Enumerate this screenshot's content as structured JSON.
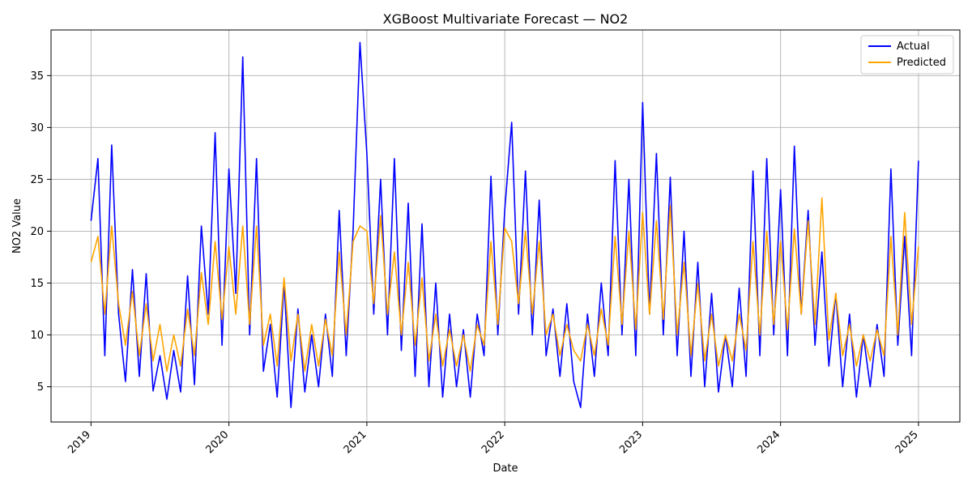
{
  "chart_data": {
    "type": "line",
    "title": "XGBoost Multivariate Forecast — NO2",
    "xlabel": "Date",
    "ylabel": "NO2 Value",
    "xlim": [
      2018.71,
      2025.3
    ],
    "ylim": [
      1.6,
      39.4
    ],
    "x_ticks": [
      2019,
      2020,
      2021,
      2022,
      2023,
      2024,
      2025
    ],
    "y_ticks": [
      5,
      10,
      15,
      20,
      25,
      30,
      35
    ],
    "grid": true,
    "legend_position": "top-right",
    "series": [
      {
        "name": "Actual",
        "color": "#0000ff",
        "x": [
          2019.0,
          2019.05,
          2019.1,
          2019.15,
          2019.2,
          2019.25,
          2019.3,
          2019.35,
          2019.4,
          2019.45,
          2019.5,
          2019.55,
          2019.6,
          2019.65,
          2019.7,
          2019.75,
          2019.8,
          2019.85,
          2019.9,
          2019.95,
          2020.0,
          2020.05,
          2020.1,
          2020.15,
          2020.2,
          2020.25,
          2020.3,
          2020.35,
          2020.4,
          2020.45,
          2020.5,
          2020.55,
          2020.6,
          2020.65,
          2020.7,
          2020.75,
          2020.8,
          2020.85,
          2020.9,
          2020.95,
          2021.0,
          2021.05,
          2021.1,
          2021.15,
          2021.2,
          2021.25,
          2021.3,
          2021.35,
          2021.4,
          2021.45,
          2021.5,
          2021.55,
          2021.6,
          2021.65,
          2021.7,
          2021.75,
          2021.8,
          2021.85,
          2021.9,
          2021.95,
          2022.0,
          2022.05,
          2022.1,
          2022.15,
          2022.2,
          2022.25,
          2022.3,
          2022.35,
          2022.4,
          2022.45,
          2022.5,
          2022.55,
          2022.6,
          2022.65,
          2022.7,
          2022.75,
          2022.8,
          2022.85,
          2022.9,
          2022.95,
          2023.0,
          2023.05,
          2023.1,
          2023.15,
          2023.2,
          2023.25,
          2023.3,
          2023.35,
          2023.4,
          2023.45,
          2023.5,
          2023.55,
          2023.6,
          2023.65,
          2023.7,
          2023.75,
          2023.8,
          2023.85,
          2023.9,
          2023.95,
          2024.0,
          2024.05,
          2024.1,
          2024.15,
          2024.2,
          2024.25,
          2024.3,
          2024.35,
          2024.4,
          2024.45,
          2024.5,
          2024.55,
          2024.6,
          2024.65,
          2024.7,
          2024.75,
          2024.8,
          2024.85,
          2024.9,
          2024.95,
          2025.0
        ],
        "values": [
          21.0,
          27.0,
          8.0,
          28.3,
          12.0,
          5.5,
          16.3,
          6.0,
          15.9,
          4.6,
          8.0,
          3.8,
          8.5,
          4.5,
          15.7,
          5.2,
          20.5,
          12.0,
          29.5,
          9.0,
          26.0,
          14.0,
          36.8,
          10.0,
          27.0,
          6.5,
          11.0,
          4.0,
          15.0,
          3.0,
          12.5,
          4.5,
          10.0,
          5.0,
          12.0,
          6.0,
          22.0,
          8.0,
          20.0,
          38.2,
          27.5,
          12.0,
          25.0,
          10.0,
          27.0,
          8.5,
          22.7,
          6.0,
          20.7,
          5.0,
          15.0,
          4.0,
          12.0,
          5.0,
          10.5,
          4.0,
          12.0,
          8.0,
          25.3,
          10.0,
          22.0,
          30.5,
          12.0,
          25.8,
          10.0,
          23.0,
          8.0,
          12.5,
          6.0,
          13.0,
          5.5,
          3.0,
          12.0,
          6.0,
          15.0,
          8.0,
          26.8,
          10.0,
          25.0,
          8.0,
          32.4,
          12.0,
          27.5,
          10.0,
          25.2,
          8.0,
          20.0,
          6.0,
          17.0,
          5.0,
          14.0,
          4.5,
          10.0,
          5.0,
          14.5,
          6.0,
          25.8,
          8.0,
          27.0,
          10.0,
          24.0,
          8.0,
          28.2,
          12.0,
          22.0,
          9.0,
          18.0,
          7.0,
          14.0,
          5.0,
          12.0,
          4.0,
          10.0,
          5.0,
          11.0,
          6.0,
          26.0,
          9.0,
          19.5,
          8.0,
          26.8
        ]
      },
      {
        "name": "Predicted",
        "color": "#ffa500",
        "x": [
          2019.0,
          2019.05,
          2019.1,
          2019.15,
          2019.2,
          2019.25,
          2019.3,
          2019.35,
          2019.4,
          2019.45,
          2019.5,
          2019.55,
          2019.6,
          2019.65,
          2019.7,
          2019.75,
          2019.8,
          2019.85,
          2019.9,
          2019.95,
          2020.0,
          2020.05,
          2020.1,
          2020.15,
          2020.2,
          2020.25,
          2020.3,
          2020.35,
          2020.4,
          2020.45,
          2020.5,
          2020.55,
          2020.6,
          2020.65,
          2020.7,
          2020.75,
          2020.8,
          2020.85,
          2020.9,
          2020.95,
          2021.0,
          2021.05,
          2021.1,
          2021.15,
          2021.2,
          2021.25,
          2021.3,
          2021.35,
          2021.4,
          2021.45,
          2021.5,
          2021.55,
          2021.6,
          2021.65,
          2021.7,
          2021.75,
          2021.8,
          2021.85,
          2021.9,
          2021.95,
          2022.0,
          2022.05,
          2022.1,
          2022.15,
          2022.2,
          2022.25,
          2022.3,
          2022.35,
          2022.4,
          2022.45,
          2022.5,
          2022.55,
          2022.6,
          2022.65,
          2022.7,
          2022.75,
          2022.8,
          2022.85,
          2022.9,
          2022.95,
          2023.0,
          2023.05,
          2023.1,
          2023.15,
          2023.2,
          2023.25,
          2023.3,
          2023.35,
          2023.4,
          2023.45,
          2023.5,
          2023.55,
          2023.6,
          2023.65,
          2023.7,
          2023.75,
          2023.8,
          2023.85,
          2023.9,
          2023.95,
          2024.0,
          2024.05,
          2024.1,
          2024.15,
          2024.2,
          2024.25,
          2024.3,
          2024.35,
          2024.4,
          2024.45,
          2024.5,
          2024.55,
          2024.6,
          2024.65,
          2024.7,
          2024.75,
          2024.8,
          2024.85,
          2024.9,
          2024.95,
          2025.0
        ],
        "values": [
          17.0,
          19.5,
          12.0,
          20.5,
          13.0,
          9.0,
          14.2,
          8.0,
          13.0,
          7.5,
          11.0,
          6.5,
          10.0,
          7.0,
          12.5,
          8.0,
          16.0,
          11.0,
          19.0,
          11.5,
          18.5,
          12.0,
          20.5,
          11.0,
          20.5,
          9.0,
          12.0,
          7.0,
          15.5,
          7.5,
          12.0,
          6.5,
          11.0,
          7.0,
          11.5,
          8.0,
          18.0,
          10.0,
          19.0,
          20.5,
          20.0,
          13.0,
          21.5,
          12.0,
          18.0,
          10.0,
          17.0,
          9.0,
          15.5,
          7.5,
          12.0,
          7.0,
          10.5,
          7.0,
          10.0,
          6.5,
          11.0,
          9.0,
          19.0,
          11.0,
          20.3,
          19.0,
          13.0,
          20.0,
          12.0,
          19.0,
          10.0,
          12.0,
          8.0,
          11.0,
          8.5,
          7.5,
          11.0,
          8.0,
          12.5,
          9.0,
          19.5,
          11.0,
          20.0,
          10.5,
          21.8,
          12.0,
          21.0,
          11.5,
          22.5,
          10.0,
          17.0,
          8.0,
          15.0,
          7.5,
          12.0,
          7.0,
          10.0,
          7.5,
          12.0,
          8.5,
          19.0,
          10.0,
          20.0,
          11.0,
          19.0,
          10.5,
          20.2,
          12.0,
          21.0,
          11.0,
          23.2,
          9.5,
          14.0,
          8.0,
          11.0,
          7.0,
          10.0,
          7.5,
          10.5,
          8.0,
          19.5,
          10.0,
          21.8,
          11.0,
          18.5
        ]
      }
    ]
  }
}
